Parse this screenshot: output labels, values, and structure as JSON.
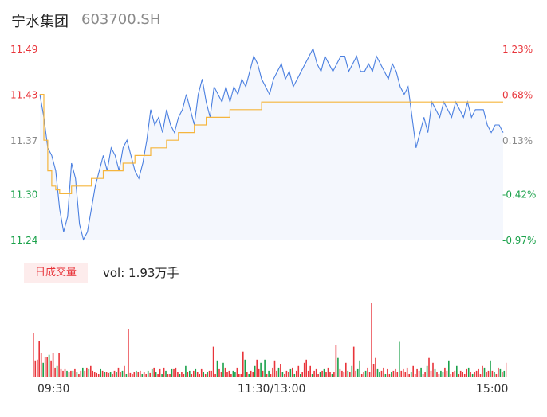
{
  "header": {
    "name": "宁水集团",
    "code": "603700.SH"
  },
  "volume_panel": {
    "badge": "日成交量",
    "vol_text": "vol: 1.93万手"
  },
  "colors": {
    "up": "#e8343a",
    "down": "#1aa14a",
    "neutral": "#8a8a8a",
    "price_line": "#4a7fe0",
    "avg_line": "#f5b53d",
    "fill": "#f4f7fd"
  },
  "chart_data": [
    {
      "type": "line",
      "x_ticks": [
        "09:30",
        "11:30/13:00",
        "15:00"
      ],
      "price_ticks": [
        "11.49",
        "11.43",
        "11.37",
        "11.30",
        "11.24"
      ],
      "pct_ticks": [
        "1.23%",
        "0.68%",
        "0.13%",
        "-0.42%",
        "-0.97%"
      ],
      "ylim": [
        11.24,
        11.49
      ],
      "prev_close": 11.355,
      "series": [
        {
          "key": "price",
          "values": [
            11.43,
            11.4,
            11.36,
            11.35,
            11.33,
            11.28,
            11.25,
            11.27,
            11.34,
            11.32,
            11.26,
            11.24,
            11.25,
            11.28,
            11.31,
            11.33,
            11.35,
            11.33,
            11.36,
            11.35,
            11.33,
            11.36,
            11.37,
            11.35,
            11.33,
            11.32,
            11.34,
            11.37,
            11.41,
            11.39,
            11.4,
            11.38,
            11.41,
            11.39,
            11.38,
            11.4,
            11.41,
            11.43,
            11.41,
            11.39,
            11.43,
            11.45,
            11.42,
            11.4,
            11.44,
            11.43,
            11.42,
            11.44,
            11.42,
            11.44,
            11.43,
            11.45,
            11.44,
            11.46,
            11.48,
            11.47,
            11.45,
            11.44,
            11.43,
            11.45,
            11.46,
            11.47,
            11.45,
            11.46,
            11.44,
            11.45,
            11.46,
            11.47,
            11.48,
            11.49,
            11.47,
            11.46,
            11.48,
            11.47,
            11.46,
            11.47,
            11.48,
            11.48,
            11.46,
            11.47,
            11.48,
            11.46,
            11.46,
            11.47,
            11.46,
            11.48,
            11.47,
            11.46,
            11.45,
            11.47,
            11.46,
            11.44,
            11.43,
            11.44,
            11.4,
            11.36,
            11.38,
            11.4,
            11.38,
            11.42,
            11.41,
            11.4,
            11.42,
            11.41,
            11.4,
            11.42,
            11.41,
            11.4,
            11.42,
            11.4,
            11.41,
            11.41,
            11.41,
            11.39,
            11.38,
            11.39,
            11.39,
            11.38
          ]
        },
        {
          "key": "avg",
          "values": [
            11.43,
            11.37,
            11.33,
            11.31,
            11.305,
            11.3,
            11.3,
            11.3,
            11.31,
            11.31,
            11.31,
            11.31,
            11.31,
            11.32,
            11.32,
            11.32,
            11.33,
            11.33,
            11.33,
            11.33,
            11.33,
            11.34,
            11.34,
            11.34,
            11.35,
            11.35,
            11.35,
            11.35,
            11.36,
            11.36,
            11.36,
            11.36,
            11.37,
            11.37,
            11.37,
            11.38,
            11.38,
            11.38,
            11.38,
            11.39,
            11.39,
            11.39,
            11.4,
            11.4,
            11.4,
            11.4,
            11.4,
            11.4,
            11.41,
            11.41,
            11.41,
            11.41,
            11.41,
            11.41,
            11.41,
            11.41,
            11.42,
            11.42,
            11.42,
            11.42,
            11.42,
            11.42,
            11.42,
            11.42,
            11.42,
            11.42,
            11.42,
            11.42,
            11.42,
            11.42,
            11.42,
            11.42,
            11.42,
            11.42,
            11.42,
            11.42,
            11.42,
            11.42,
            11.42,
            11.42,
            11.42,
            11.42,
            11.42,
            11.42,
            11.42,
            11.42,
            11.42,
            11.42,
            11.42,
            11.42,
            11.42,
            11.42,
            11.42,
            11.42,
            11.42,
            11.42,
            11.42,
            11.42,
            11.42,
            11.42,
            11.42,
            11.42,
            11.42,
            11.42,
            11.42,
            11.42,
            11.42,
            11.42,
            11.42,
            11.42,
            11.42,
            11.42,
            11.42,
            11.42,
            11.42,
            11.42,
            11.42,
            11.42
          ]
        }
      ]
    },
    {
      "type": "bar",
      "series": [
        {
          "key": "volume",
          "values": [
            55,
            20,
            22,
            45,
            30,
            18,
            25,
            25,
            28,
            20,
            30,
            12,
            14,
            30,
            10,
            8,
            10,
            8,
            6,
            8,
            8,
            10,
            6,
            4,
            8,
            12,
            8,
            12,
            10,
            14,
            8,
            6,
            5,
            4,
            10,
            8,
            6,
            6,
            5,
            6,
            4,
            8,
            6,
            12,
            6,
            8,
            14,
            4,
            60,
            5,
            4,
            6,
            8,
            6,
            8,
            4,
            6,
            4,
            8,
            5,
            10,
            12,
            6,
            4,
            10,
            4,
            12,
            8,
            4,
            4,
            10,
            10,
            12,
            6,
            4,
            6,
            4,
            14,
            6,
            8,
            4,
            8,
            10,
            6,
            4,
            10,
            6,
            4,
            6,
            8,
            8,
            38,
            4,
            20,
            10,
            6,
            18,
            12,
            6,
            8,
            4,
            8,
            6,
            12,
            4,
            4,
            32,
            22,
            6,
            4,
            8,
            6,
            14,
            22,
            10,
            18,
            8,
            22,
            4,
            8,
            4,
            12,
            20,
            8,
            12,
            16,
            6,
            4,
            8,
            6,
            10,
            12,
            4,
            8,
            14,
            4,
            6,
            18,
            22,
            8,
            14,
            4,
            8,
            10,
            4,
            6,
            8,
            10,
            6,
            12,
            6,
            4,
            6,
            40,
            24,
            10,
            8,
            6,
            18,
            8,
            6,
            14,
            38,
            8,
            10,
            20,
            4,
            6,
            8,
            12,
            6,
            92,
            16,
            24,
            10,
            6,
            8,
            12,
            4,
            10,
            4,
            6,
            8,
            10,
            6,
            44,
            8,
            10,
            6,
            12,
            4,
            6,
            14,
            4,
            10,
            8,
            12,
            4,
            6,
            14,
            24,
            8,
            18,
            10,
            6,
            4,
            8,
            6,
            12,
            8,
            20,
            4,
            6,
            8,
            14,
            4,
            8,
            6,
            4,
            10,
            12,
            6,
            4,
            6,
            8,
            10,
            4,
            14,
            12,
            6,
            8,
            20,
            8,
            6,
            4,
            12,
            10,
            6,
            8,
            18
          ]
        },
        {
          "key": "direction",
          "values": [
            1,
            1,
            1,
            1,
            1,
            -1,
            1,
            1,
            -1,
            1,
            1,
            1,
            -1,
            1,
            1,
            1,
            1,
            -1,
            1,
            1,
            -1,
            1,
            -1,
            1,
            1,
            -1,
            1,
            1,
            -1,
            1,
            1,
            1,
            1,
            1,
            -1,
            1,
            -1,
            1,
            1,
            -1,
            1,
            1,
            -1,
            1,
            1,
            -1,
            1,
            -1,
            1,
            1,
            1,
            1,
            -1,
            1,
            1,
            -1,
            1,
            1,
            -1,
            1,
            -1,
            1,
            -1,
            1,
            1,
            -1,
            1,
            -1,
            1,
            1,
            -1,
            1,
            1,
            1,
            -1,
            1,
            1,
            -1,
            1,
            -1,
            1,
            1,
            -1,
            1,
            1,
            1,
            -1,
            1,
            -1,
            1,
            1,
            1,
            1,
            -1,
            1,
            1,
            -1,
            1,
            1,
            1,
            1,
            -1,
            -1,
            1,
            1,
            1,
            1,
            -1,
            1,
            -1,
            1,
            1,
            -1,
            1,
            1,
            -1,
            1,
            -1,
            1,
            -1,
            1,
            1,
            1,
            1,
            -1,
            1,
            -1,
            1,
            1,
            1,
            -1,
            1,
            -1,
            1,
            1,
            -1,
            1,
            1,
            1,
            1,
            1,
            -1,
            1,
            1,
            1,
            -1,
            1,
            -1,
            1,
            1,
            1,
            -1,
            1,
            1,
            -1,
            1,
            1,
            1,
            1,
            -1,
            1,
            -1,
            1,
            1,
            -1,
            -1,
            1,
            1,
            -1,
            1,
            1,
            1,
            1,
            1,
            -1,
            -1,
            1,
            1,
            -1,
            1,
            1,
            -1,
            1,
            1,
            1,
            -1,
            1,
            1,
            1,
            1,
            1,
            -1,
            1,
            1,
            1,
            1,
            -1,
            1,
            1,
            -1,
            1,
            1,
            1,
            -1,
            1,
            1,
            -1,
            -1,
            1,
            1,
            -1,
            1,
            1,
            1,
            -1,
            1,
            1,
            1,
            1,
            1,
            -1,
            1,
            -1,
            1,
            1,
            1,
            1,
            1,
            -1,
            1,
            1,
            -1,
            1,
            -1,
            1,
            1,
            -1,
            1,
            -1,
            1,
            1,
            1,
            -1,
            1
          ]
        }
      ]
    }
  ]
}
